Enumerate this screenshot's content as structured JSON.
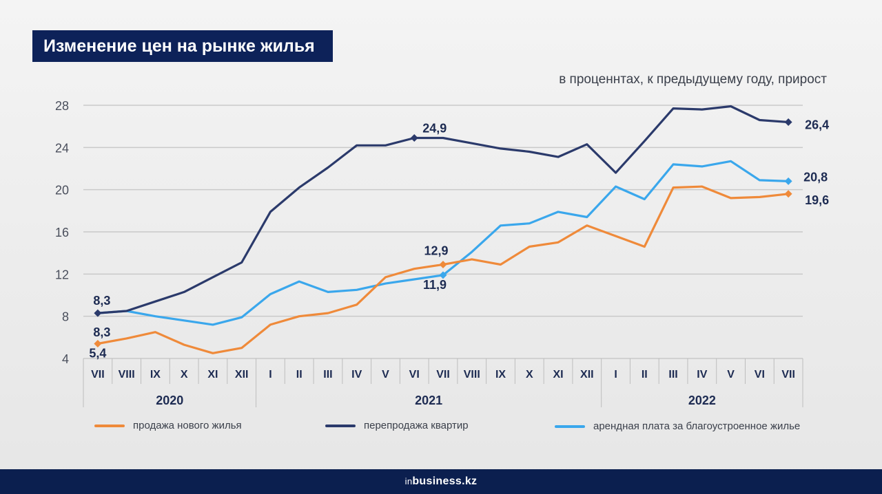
{
  "title": "Изменение цен на рынке жилья",
  "subtitle": "в проценнтах, к предыдущему году, прирост",
  "brand": {
    "prefix": "in",
    "name": "business.kz"
  },
  "chart_data": {
    "type": "line",
    "categories": [
      "VII",
      "VIII",
      "IX",
      "X",
      "XI",
      "XII",
      "I",
      "II",
      "III",
      "IV",
      "V",
      "VI",
      "VII",
      "VIII",
      "IX",
      "X",
      "XI",
      "XII",
      "I",
      "II",
      "III",
      "IV",
      "V",
      "VI",
      "VII"
    ],
    "years": [
      {
        "label": "2020",
        "from": 0,
        "to": 5
      },
      {
        "label": "2021",
        "from": 6,
        "to": 17
      },
      {
        "label": "2022",
        "from": 18,
        "to": 24
      }
    ],
    "yticks": [
      4,
      8,
      12,
      16,
      20,
      24,
      28
    ],
    "ylim": [
      4,
      28
    ],
    "grid": true,
    "legend_position": "bottom",
    "series": [
      {
        "name": "продажа нового жилья",
        "color": "#ef8a3a",
        "values": [
          5.4,
          5.9,
          6.5,
          5.3,
          4.5,
          5.0,
          7.2,
          8.0,
          8.3,
          9.1,
          11.7,
          12.5,
          12.9,
          13.4,
          12.9,
          14.6,
          15.0,
          16.6,
          15.6,
          14.6,
          20.2,
          20.3,
          19.2,
          19.3,
          19.6
        ],
        "markers": [
          0,
          12,
          24
        ],
        "labels": [
          "5,4",
          "12,9",
          "19,6"
        ]
      },
      {
        "name": "перепродажа квартир",
        "color": "#2b3a6b",
        "values": [
          8.3,
          8.5,
          9.4,
          10.3,
          11.7,
          13.1,
          17.9,
          20.2,
          22.1,
          24.2,
          24.2,
          24.9,
          24.9,
          24.4,
          23.9,
          23.6,
          23.1,
          24.3,
          21.6,
          24.6,
          27.7,
          27.6,
          27.9,
          26.6,
          26.4
        ],
        "markers": [
          0,
          11,
          24
        ],
        "labels": [
          "8,3",
          "24,9",
          "26,4"
        ]
      },
      {
        "name": "арендная плата за благоустроенное жилье",
        "color": "#3aa7ec",
        "values": [
          8.3,
          8.5,
          8.0,
          7.6,
          7.2,
          7.9,
          10.1,
          11.3,
          10.3,
          10.5,
          11.1,
          11.5,
          11.9,
          14.1,
          16.6,
          16.8,
          17.9,
          17.4,
          20.3,
          19.1,
          22.4,
          22.2,
          22.7,
          20.9,
          20.8
        ],
        "markers": [
          12,
          24
        ],
        "labels": [
          "11,9",
          "20,8"
        ]
      }
    ]
  }
}
